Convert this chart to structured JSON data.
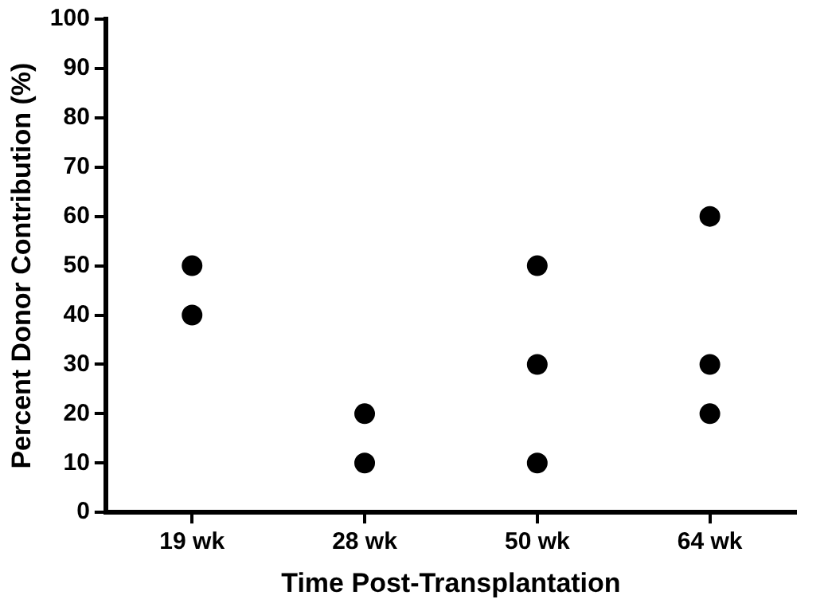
{
  "chart_data": {
    "type": "scatter",
    "xlabel": "Time Post-Transplantation",
    "ylabel": "Percent Donor Contribution (%)",
    "categories": [
      "19 wk",
      "28 wk",
      "50 wk",
      "64 wk"
    ],
    "series": [
      {
        "color": "#000000",
        "x": [
          "19 wk",
          "19 wk",
          "28 wk",
          "28 wk",
          "50 wk",
          "50 wk",
          "50 wk",
          "64 wk",
          "64 wk",
          "64 wk"
        ],
        "values": [
          50,
          40,
          20,
          10,
          50,
          30,
          10,
          60,
          30,
          20
        ]
      }
    ],
    "marker": "circle",
    "ylim": [
      0,
      100
    ],
    "yticks": [
      0,
      10,
      20,
      30,
      40,
      50,
      60,
      70,
      80,
      90,
      100
    ],
    "grid": false,
    "legend": false
  }
}
